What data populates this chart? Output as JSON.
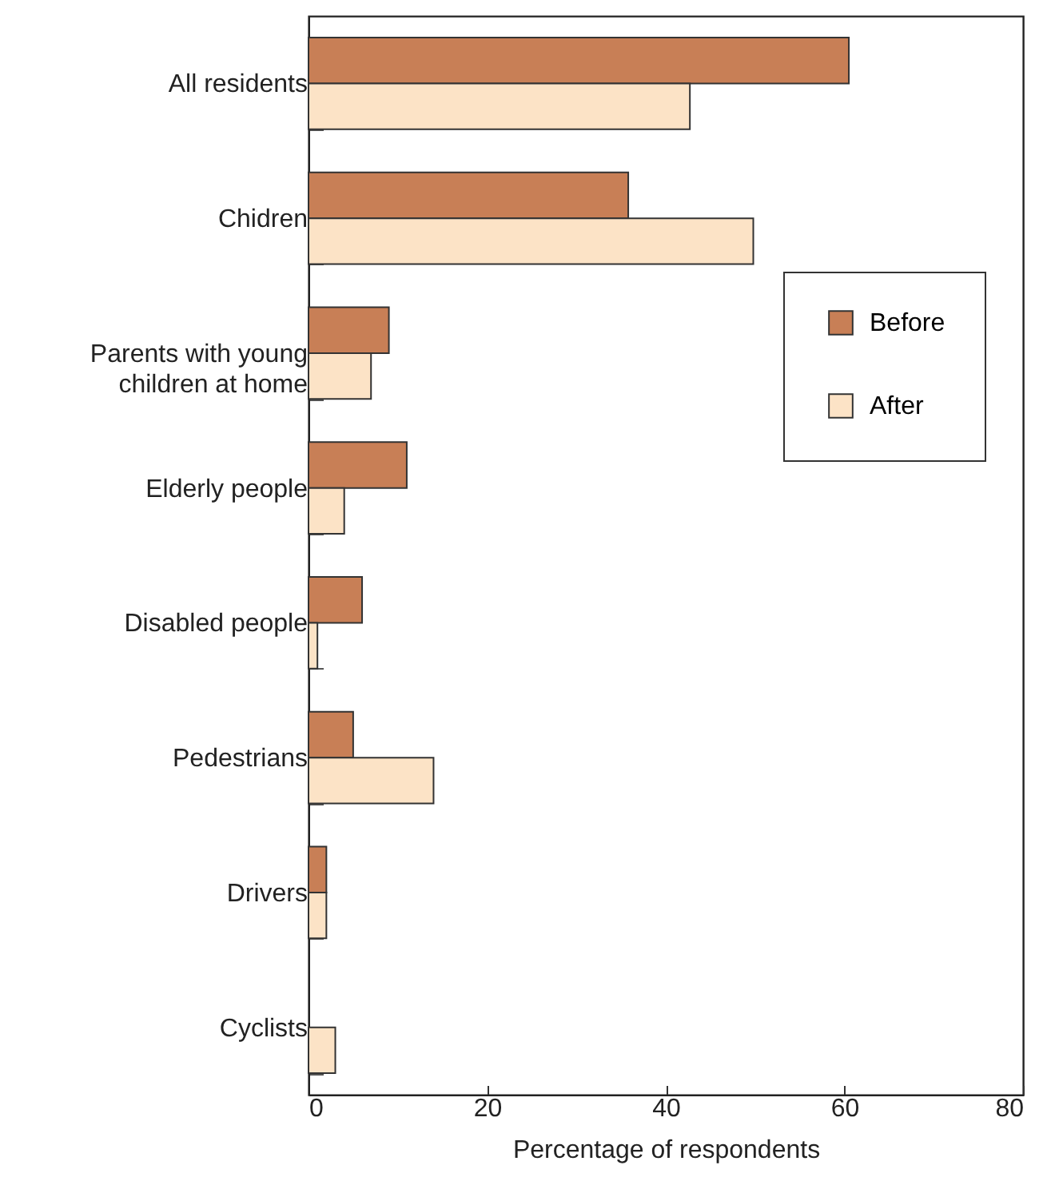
{
  "chart_data": {
    "type": "bar",
    "orientation": "horizontal",
    "xlabel": "Percentage of respondents",
    "categories": [
      "All residents",
      "Chidren",
      "Parents with young children at home",
      "Elderly people",
      "Disabled people",
      "Pedestrians",
      "Drivers",
      "Cyclists"
    ],
    "series": [
      {
        "name": "Before",
        "color": "#c87f56",
        "values": [
          60.5,
          35.8,
          9,
          11,
          6,
          5,
          2,
          null
        ]
      },
      {
        "name": "After",
        "color": "#fce3c6",
        "values": [
          42.7,
          49.8,
          7,
          4,
          1,
          14,
          2,
          3
        ]
      }
    ],
    "xlim": [
      0,
      80
    ],
    "xticks": [
      0,
      20,
      40,
      60,
      80
    ],
    "grid": false,
    "legend": "right"
  }
}
